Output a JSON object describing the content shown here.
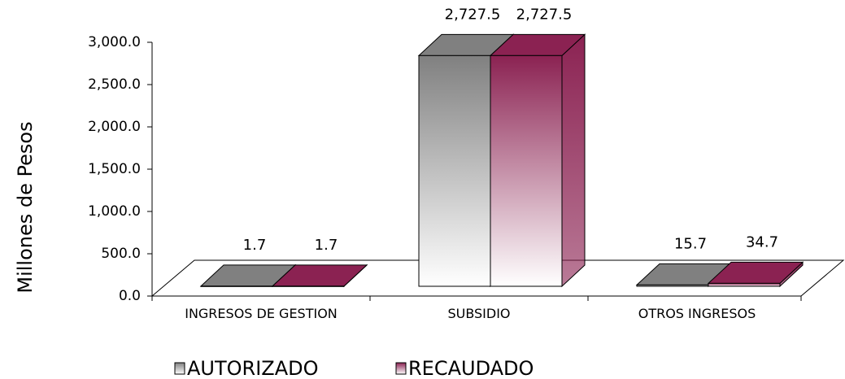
{
  "chart_data": {
    "type": "bar3d",
    "y_label": "Millones de Pesos",
    "categories": [
      "INGRESOS DE GESTION",
      "SUBSIDIO",
      "OTROS INGRESOS"
    ],
    "series": [
      {
        "name": "AUTORIZADO",
        "color": "#808080",
        "values": [
          1.7,
          2727.5,
          15.7
        ],
        "value_labels": [
          "1.7",
          "2,727.5",
          "15.7"
        ]
      },
      {
        "name": "RECAUDADO",
        "color": "#8b2252",
        "values": [
          1.7,
          2727.5,
          34.7
        ],
        "value_labels": [
          "1.7",
          "2,727.5",
          "34.7"
        ]
      }
    ],
    "ylim": [
      0,
      3000
    ],
    "yticks": [
      {
        "value": 0,
        "label": "0.0"
      },
      {
        "value": 500,
        "label": "500.0"
      },
      {
        "value": 1000,
        "label": "1,000.0"
      },
      {
        "value": 1500,
        "label": "1,500.0"
      },
      {
        "value": 2000,
        "label": "2,000.0"
      },
      {
        "value": 2500,
        "label": "2,500.0"
      },
      {
        "value": 3000,
        "label": "3,000.0"
      }
    ],
    "legend": "bottom"
  }
}
